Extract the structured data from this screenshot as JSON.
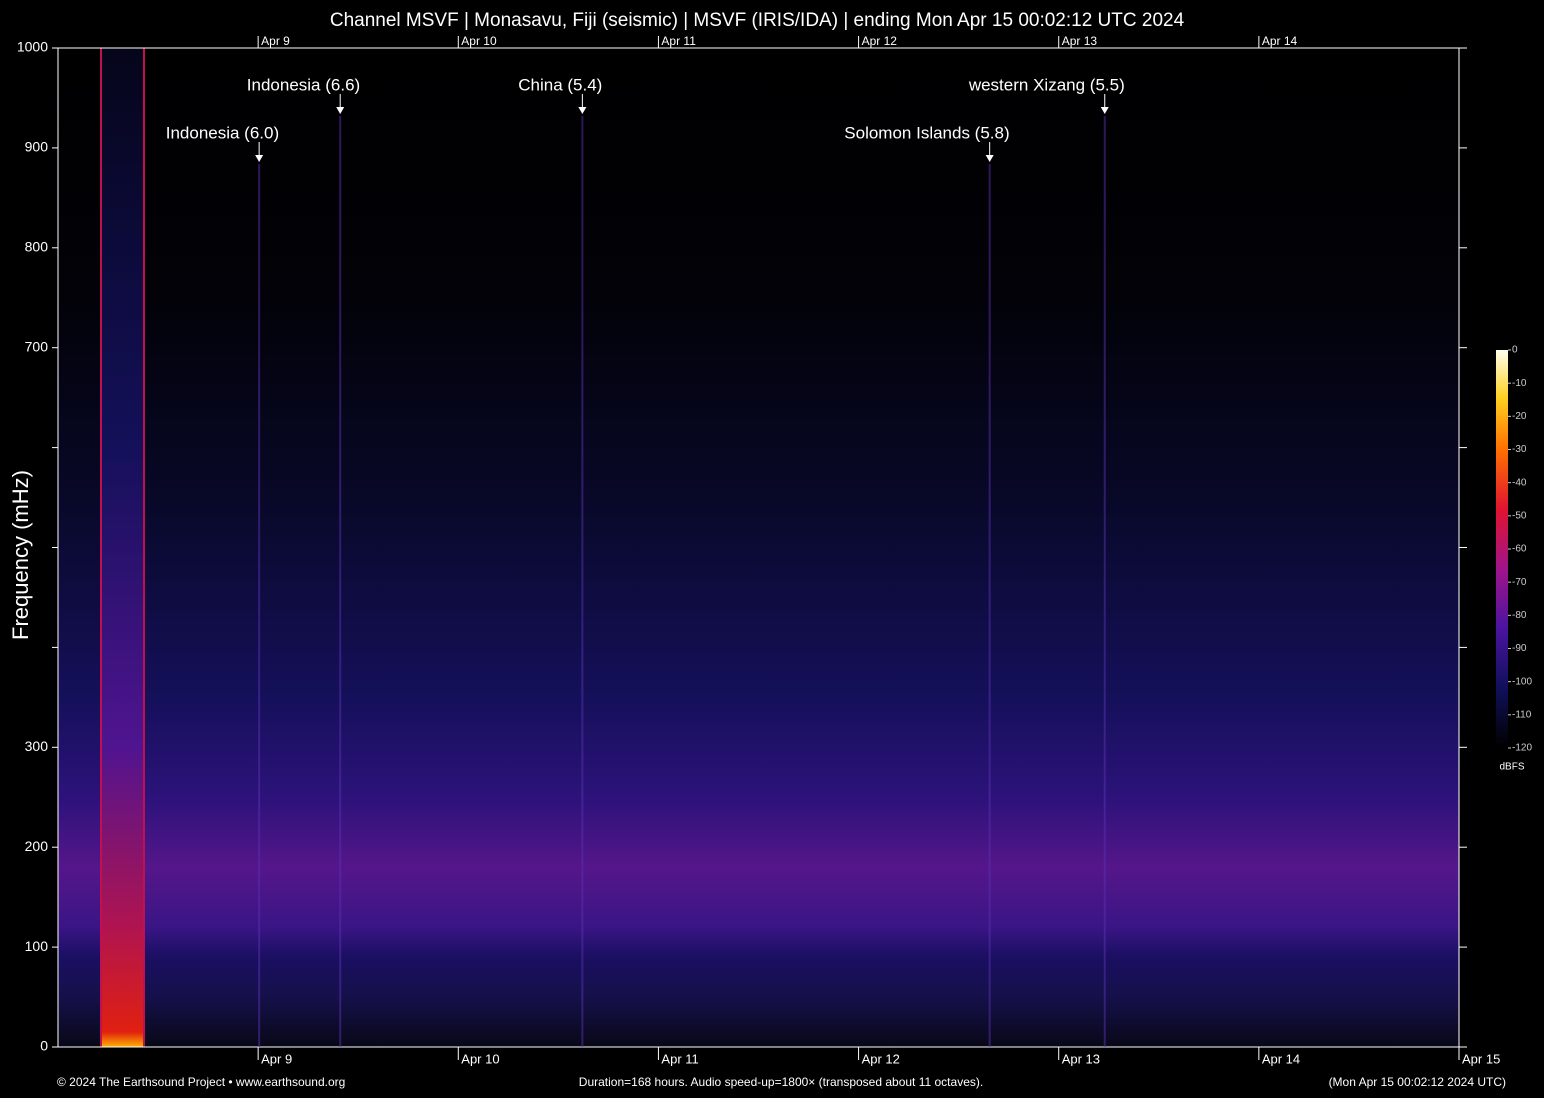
{
  "chart_data": {
    "type": "spectrogram",
    "title": "Channel MSVF | Monasavu, Fiji (seismic) | MSVF (IRIS/IDA) | ending Mon Apr 15 00:02:12 UTC 2024",
    "ylabel": "Frequency (mHz)",
    "ylim": [
      0,
      1000
    ],
    "yticks": [
      0,
      100,
      200,
      300,
      {
        "value": 400,
        "label": null
      },
      {
        "value": 500,
        "label": null
      },
      {
        "value": 600,
        "label": null
      },
      700,
      800,
      900,
      1000
    ],
    "xlim": [
      0,
      7
    ],
    "xticks": [
      {
        "value": 1,
        "label": "Apr 9"
      },
      {
        "value": 2,
        "label": "Apr 10"
      },
      {
        "value": 3,
        "label": "Apr 11"
      },
      {
        "value": 4,
        "label": "Apr 12"
      },
      {
        "value": 5,
        "label": "Apr 13"
      },
      {
        "value": 6,
        "label": "Apr 14"
      },
      {
        "value": 7,
        "label": "Apr 15"
      }
    ],
    "annotations": [
      {
        "text": "Indonesia (6.0)",
        "x": 1.005
      },
      {
        "text": "Indonesia (6.6)",
        "x": 1.41
      },
      {
        "text": "China (5.4)",
        "x": 2.62
      },
      {
        "text": "Solomon Islands (5.8)",
        "x": 4.655
      },
      {
        "text": "western Xizang (5.5)",
        "x": 5.23
      }
    ],
    "colorbar": {
      "label": "dBFS",
      "lim": [
        -120,
        0
      ],
      "ticks": [
        0,
        -10,
        -20,
        -30,
        -40,
        -50,
        -60,
        -70,
        -80,
        -90,
        -100,
        -110,
        -120
      ]
    },
    "footer": {
      "left": "© 2024 The Earthsound Project • www.earthsound.org",
      "center": "Duration=168 hours. Audio speed-up=1800× (transposed about 11 octaves).",
      "right": "(Mon Apr 15 00:02:12 2024 UTC)"
    }
  }
}
